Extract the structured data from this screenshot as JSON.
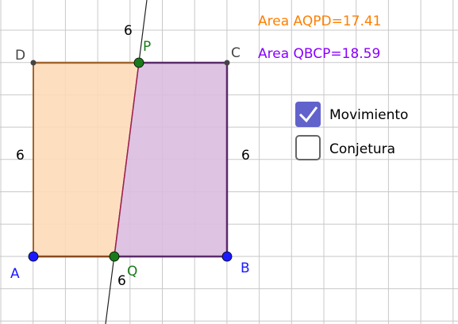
{
  "points": {
    "A": "A",
    "B": "B",
    "C": "C",
    "D": "D",
    "P": "P",
    "Q": "Q"
  },
  "segment_labels": {
    "top": "6",
    "bottom": "6",
    "left": "6",
    "right": "6"
  },
  "areas": {
    "AQPD": "Area AQPD=17.41",
    "QBCP": "Area QBCP=18.59"
  },
  "checkboxes": [
    {
      "label": "Movimiento",
      "checked": true
    },
    {
      "label": "Conjetura",
      "checked": false
    }
  ]
}
